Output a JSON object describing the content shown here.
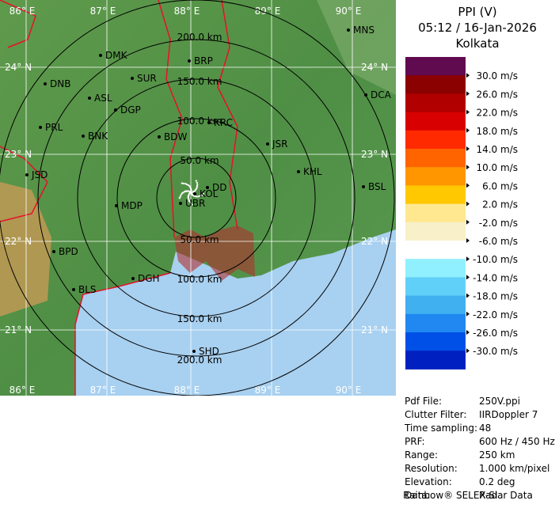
{
  "header": {
    "title": "PPI (V)",
    "timestamp": "05:12 / 16-Jan-2026",
    "site": "Kolkata"
  },
  "map": {
    "longitude_labels": [
      "86° E",
      "87° E",
      "88° E",
      "89° E",
      "90° E"
    ],
    "latitude_labels": [
      "24° N",
      "23° N",
      "22° N",
      "21° N"
    ],
    "range_labels": [
      "50.0 km",
      "100.0 km",
      "150.0 km",
      "200.0 km"
    ],
    "cities": [
      "MNS",
      "DMK",
      "BRP",
      "DNB",
      "SUR",
      "ASL",
      "DGP",
      "DCA",
      "PRL",
      "BNK",
      "KRC",
      "BDW",
      "JSR",
      "KHL",
      "JSD",
      "BSL",
      "MDP",
      "DD",
      "KOL",
      "UBR",
      "BPD",
      "DGH",
      "BLS",
      "SHD"
    ]
  },
  "legend": {
    "labels": [
      "30.0 m/s",
      "26.0 m/s",
      "22.0 m/s",
      "18.0 m/s",
      "14.0 m/s",
      "10.0 m/s",
      "6.0 m/s",
      "2.0 m/s",
      "-2.0 m/s",
      "-6.0 m/s",
      "-10.0 m/s",
      "-14.0 m/s",
      "-18.0 m/s",
      "-22.0 m/s",
      "-26.0 m/s",
      "-30.0 m/s"
    ]
  },
  "info": {
    "rows": [
      [
        "Pdf File:",
        "250V.ppi"
      ],
      [
        "Clutter Filter:",
        "IIRDoppler 7"
      ],
      [
        "Time sampling:",
        "48"
      ],
      [
        "PRF:",
        "600 Hz / 450 Hz"
      ],
      [
        "Range:",
        "250 km"
      ],
      [
        "Resolution:",
        "1.000 km/pixel"
      ],
      [
        "Elevation:",
        "0.2 deg"
      ],
      [
        "Data:",
        "Radar Data"
      ]
    ]
  },
  "footer": "Rainbow® SELEX-SI"
}
